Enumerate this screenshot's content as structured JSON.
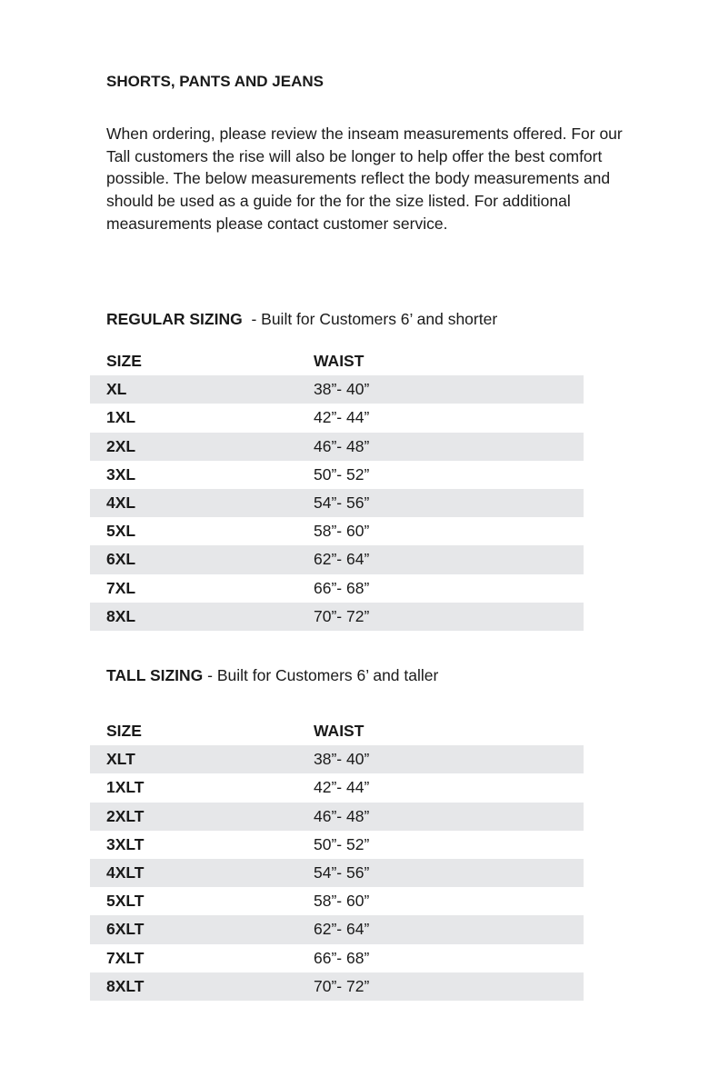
{
  "title": "SHORTS, PANTS AND JEANS",
  "intro": "When ordering, please review the inseam measurements offered. For our Tall customers the rise will also be longer to help offer the best comfort possible. The below measurements reflect the body measurements and should be used as a guide for the for the size listed. For additional measurements please contact customer service.",
  "regular": {
    "heading": "REGULAR SIZING",
    "subheading": "  - Built for Customers 6’ and shorter",
    "col_size": "SIZE",
    "col_waist": "WAIST",
    "rows": [
      [
        "XL",
        "38”- 40”"
      ],
      [
        "1XL",
        "42”- 44”"
      ],
      [
        "2XL",
        "46”- 48”"
      ],
      [
        "3XL",
        "50”- 52”"
      ],
      [
        "4XL",
        "54”- 56”"
      ],
      [
        "5XL",
        "58”- 60”"
      ],
      [
        "6XL",
        "62”- 64”"
      ],
      [
        "7XL",
        "66”- 68”"
      ],
      [
        "8XL",
        "70”- 72”"
      ]
    ]
  },
  "tall": {
    "heading": "TALL SIZING",
    "subheading": " - Built for Customers 6’ and taller",
    "col_size": "SIZE",
    "col_waist": "WAIST",
    "rows": [
      [
        "XLT",
        "38”- 40”"
      ],
      [
        "1XLT",
        "42”- 44”"
      ],
      [
        "2XLT",
        "46”- 48”"
      ],
      [
        "3XLT",
        "50”- 52”"
      ],
      [
        "4XLT",
        "54”- 56”"
      ],
      [
        "5XLT",
        "58”- 60”"
      ],
      [
        "6XLT",
        "62”- 64”"
      ],
      [
        "7XLT",
        "66”- 68”"
      ],
      [
        "8XLT",
        "70”- 72”"
      ]
    ]
  },
  "colors": {
    "row_shade": "#e6e7e9",
    "text": "#1a1a1a"
  }
}
